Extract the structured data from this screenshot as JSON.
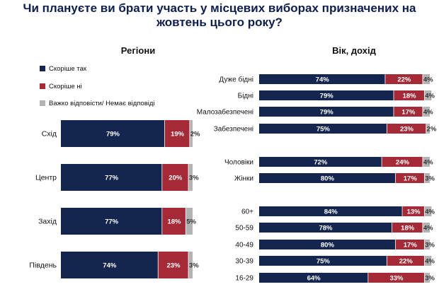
{
  "title": "Чи плануєте ви брати участь у місцевих виборах призначених на жовтень цього року?",
  "colors": {
    "yes": "#14254f",
    "no": "#a52a38",
    "hard": "#b3b3b3"
  },
  "chart_data": [
    {
      "type": "bar",
      "orientation": "horizontal",
      "stacked": true,
      "subtitle": "Регіони",
      "legend_position": "top-left",
      "categories": [
        "Схід",
        "Центр",
        "Захід",
        "Південь"
      ],
      "series": [
        {
          "name": "Скоріше так",
          "values": [
            79,
            77,
            77,
            74
          ]
        },
        {
          "name": "Скоріше ні",
          "values": [
            19,
            20,
            18,
            23
          ]
        },
        {
          "name": "Важко відповісти/ Немає відповіді",
          "values": [
            2,
            3,
            5,
            3
          ]
        }
      ],
      "data_labels": [
        [
          "79%",
          "77%",
          "77%",
          "74%"
        ],
        [
          "19%",
          "20%",
          "18%",
          "23%"
        ],
        [
          "2%",
          "3%",
          "5%",
          "3%"
        ]
      ],
      "xlim": [
        0,
        100
      ]
    },
    {
      "type": "bar",
      "orientation": "horizontal",
      "stacked": true,
      "subtitle": "Вік, дохід",
      "categories": [
        "Дуже бідні",
        "Бідні",
        "Малозабезпечені",
        "Забезпечені",
        "Чоловіки",
        "Жінки",
        "60+",
        "50-59",
        "40-49",
        "30-39",
        "16-29"
      ],
      "series": [
        {
          "name": "Скоріше так",
          "values": [
            74,
            79,
            79,
            75,
            72,
            80,
            84,
            78,
            80,
            75,
            64
          ]
        },
        {
          "name": "Скоріше ні",
          "values": [
            22,
            18,
            17,
            23,
            24,
            17,
            13,
            18,
            17,
            22,
            33
          ]
        },
        {
          "name": "Важко відповісти/ Немає відповіді",
          "values": [
            4,
            4,
            4,
            2,
            4,
            3,
            4,
            4,
            3,
            4,
            3
          ]
        }
      ],
      "data_labels": [
        [
          "74%",
          "79%",
          "79%",
          "75%",
          "72%",
          "80%",
          "84%",
          "78%",
          "80%",
          "75%",
          "64%"
        ],
        [
          "22%",
          "18%",
          "17%",
          "23%",
          "24%",
          "17%",
          "13%",
          "18%",
          "17%",
          "22%",
          "33%"
        ],
        [
          "4%",
          "4%",
          "4%",
          "2%",
          "4%",
          "3%",
          "4%",
          "4%",
          "3%",
          "4%",
          "3%"
        ]
      ],
      "xlim": [
        0,
        100
      ]
    }
  ]
}
